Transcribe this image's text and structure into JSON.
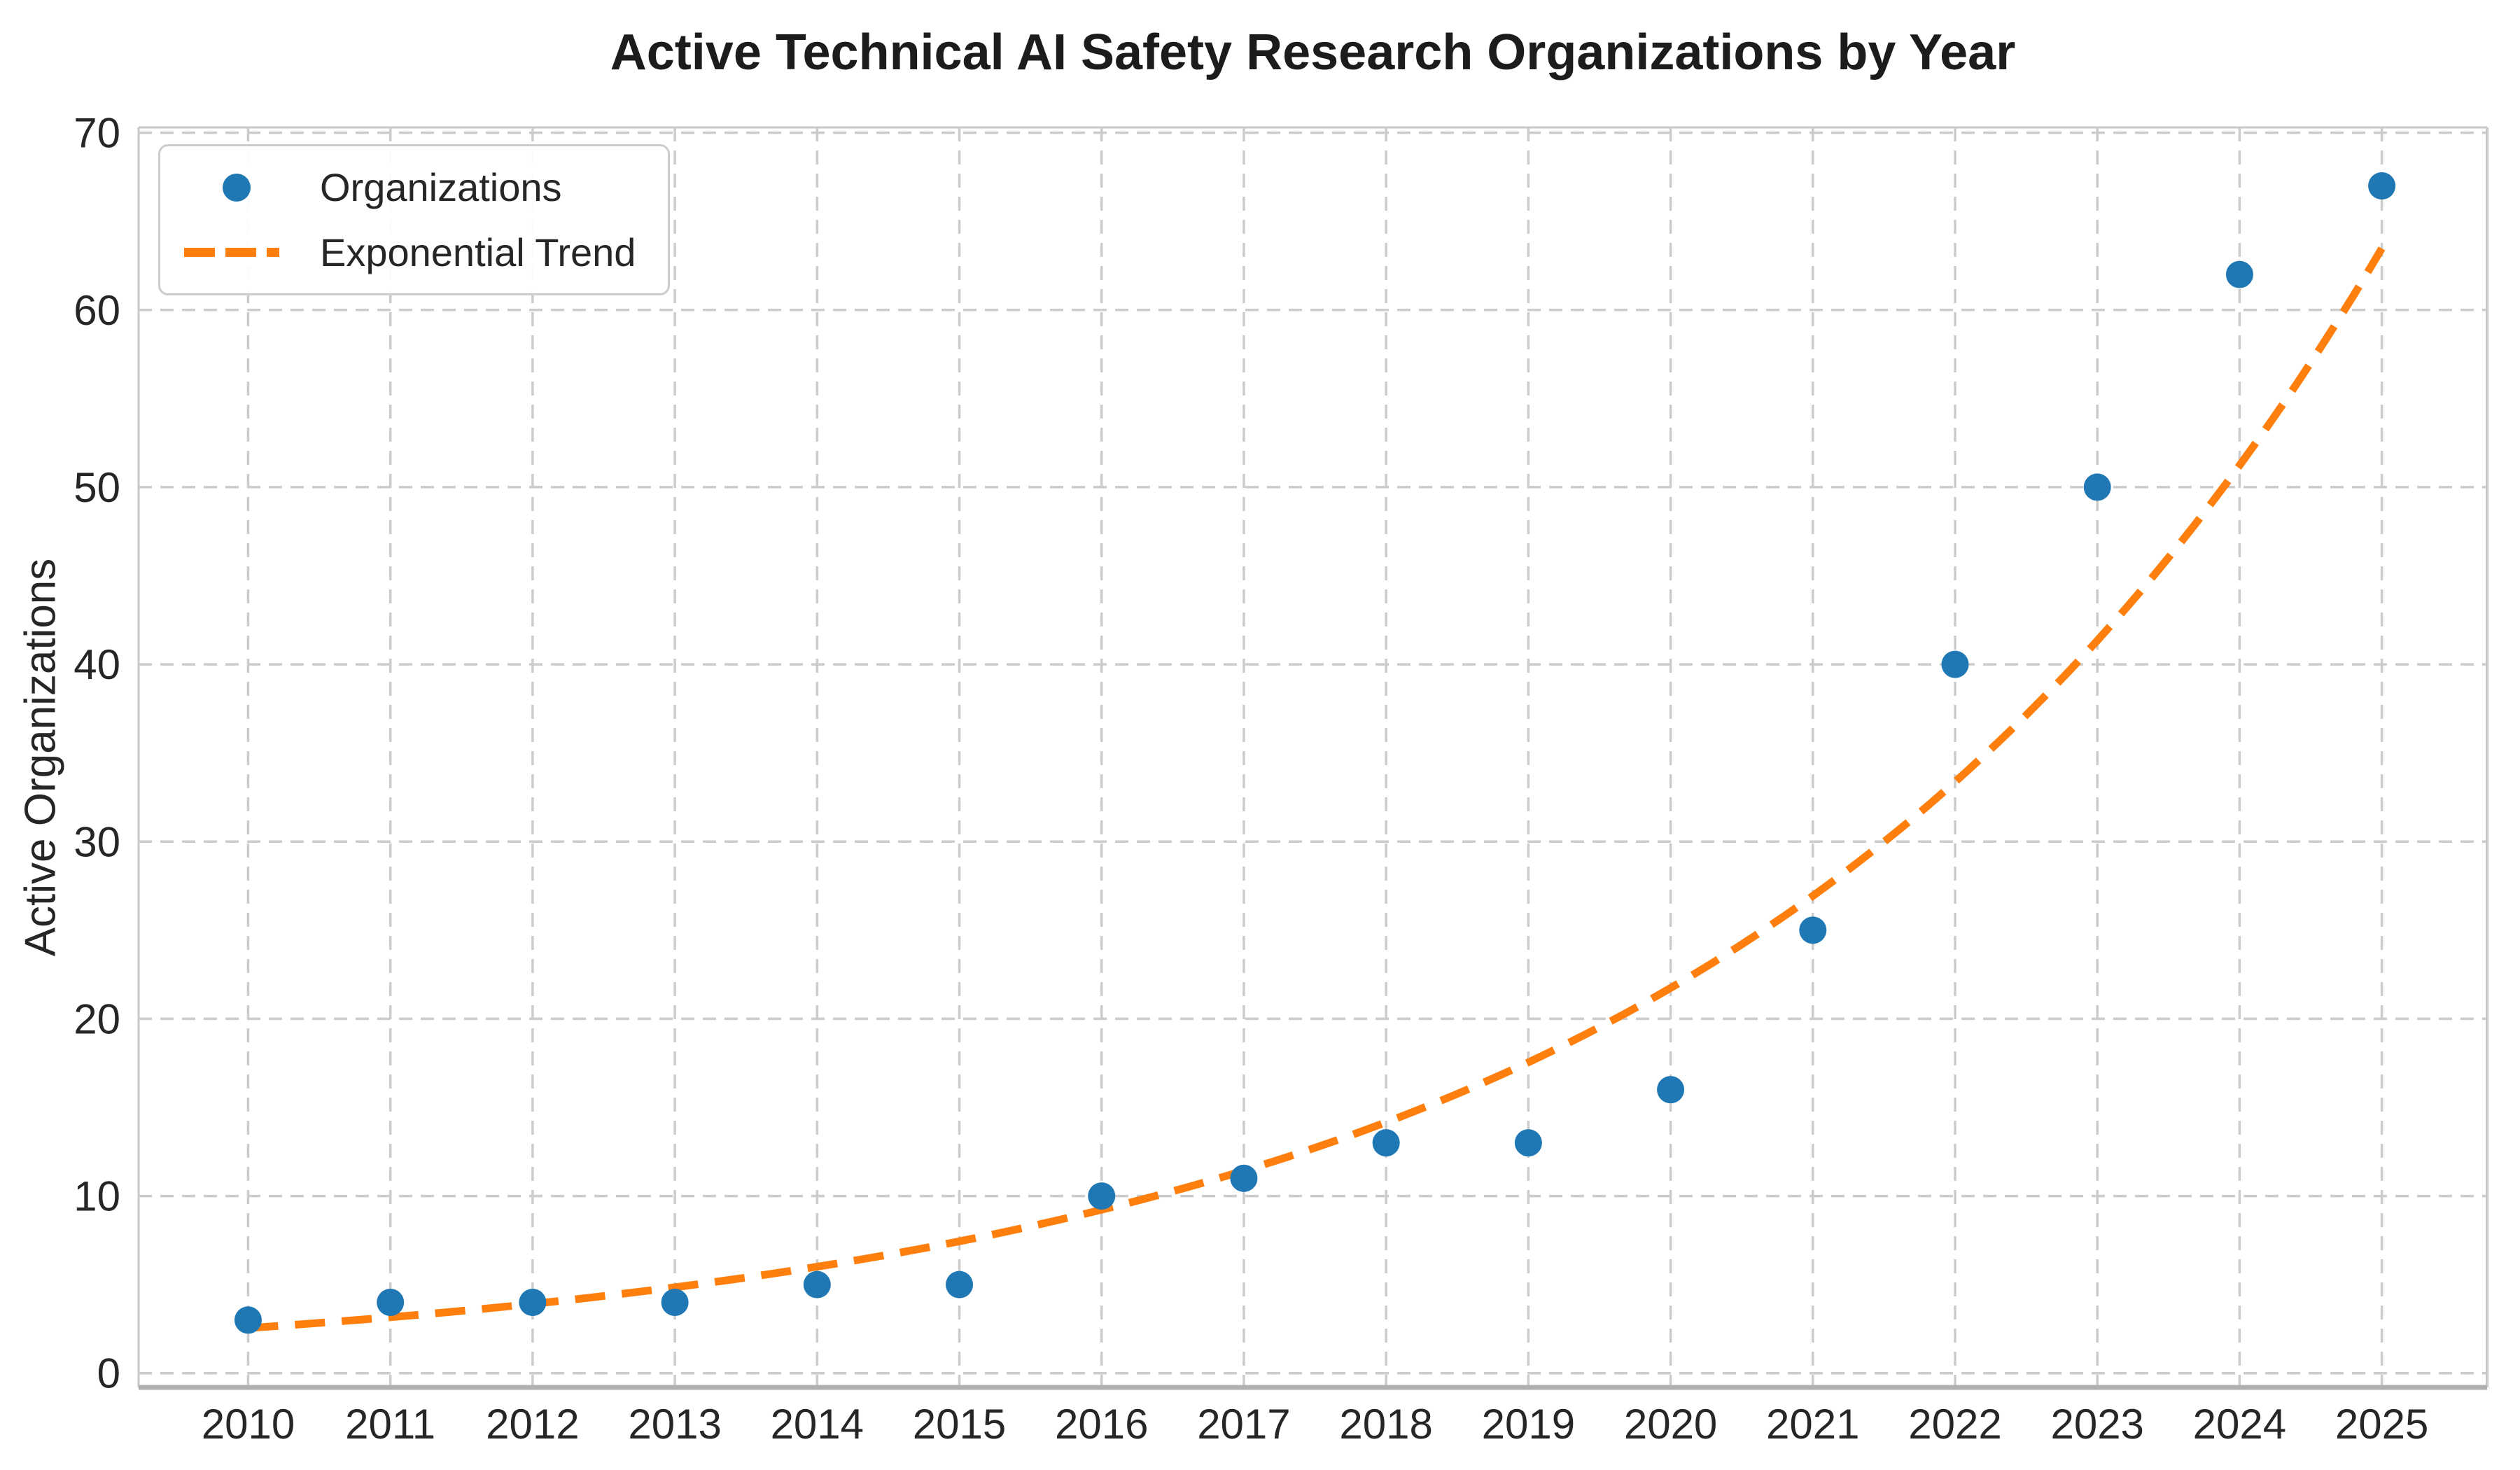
{
  "chart_data": {
    "type": "scatter",
    "title": "Active Technical AI Safety Research Organizations by Year",
    "xlabel": "",
    "ylabel": "Active Organizations",
    "categories": [
      2010,
      2011,
      2012,
      2013,
      2014,
      2015,
      2016,
      2017,
      2018,
      2019,
      2020,
      2021,
      2022,
      2023,
      2024,
      2025
    ],
    "series": [
      {
        "name": "Organizations",
        "type": "scatter",
        "color": "#1f77b4",
        "values": [
          3,
          4,
          4,
          4,
          5,
          5,
          10,
          11,
          13,
          13,
          16,
          25,
          40,
          50,
          62,
          67
        ]
      },
      {
        "name": "Exponential Trend",
        "type": "dashed-line",
        "color": "#ff7f0e",
        "values": [
          2.55,
          3.16,
          3.92,
          4.85,
          6.01,
          7.45,
          9.23,
          11.43,
          14.17,
          17.55,
          21.75,
          26.95,
          33.4,
          41.4,
          51.3,
          63.5
        ],
        "fit": {
          "model": "a*exp(b*(year-2010))",
          "a": 2.55,
          "b": 0.2143
        }
      }
    ],
    "xticks": [
      2010,
      2011,
      2012,
      2013,
      2014,
      2015,
      2016,
      2017,
      2018,
      2019,
      2020,
      2021,
      2022,
      2023,
      2024,
      2025
    ],
    "yticks": [
      0,
      10,
      20,
      30,
      40,
      50,
      60,
      70
    ],
    "xlim": [
      2009.23,
      2025.74
    ],
    "ylim": [
      -0.8,
      70.3
    ],
    "grid": {
      "visible": true,
      "style": "dashed",
      "color": "#cccccc"
    },
    "axis": {
      "tick_color": "#262626",
      "spine_color": "#c8c8c8",
      "bottom_spine_color": "#b0b0b0"
    },
    "legend": {
      "position": "upper-left",
      "entries": [
        "Organizations",
        "Exponential Trend"
      ]
    }
  }
}
